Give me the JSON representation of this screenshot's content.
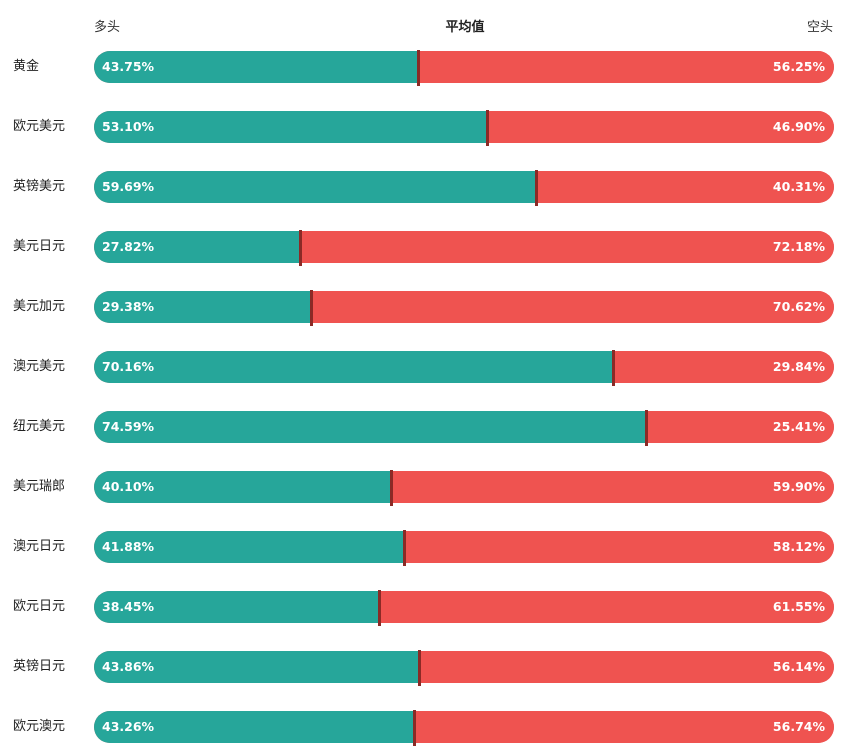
{
  "header": {
    "long_label": "多头",
    "average_label": "平均值",
    "short_label": "空头"
  },
  "colors": {
    "long": "#26a69a",
    "short": "#ef5350",
    "marker": "#8b2a26"
  },
  "chart_data": {
    "type": "bar",
    "orientation": "horizontal-stacked-100",
    "categories": [
      "黄金",
      "欧元美元",
      "英镑美元",
      "美元日元",
      "美元加元",
      "澳元美元",
      "纽元美元",
      "美元瑞郎",
      "澳元日元",
      "欧元日元",
      "英镑日元",
      "欧元澳元"
    ],
    "series": [
      {
        "name": "多头",
        "values": [
          43.75,
          53.1,
          59.69,
          27.82,
          29.38,
          70.16,
          74.59,
          40.1,
          41.88,
          38.45,
          43.86,
          43.26
        ],
        "labels": [
          "43.75%",
          "53.10%",
          "59.69%",
          "27.82%",
          "29.38%",
          "70.16%",
          "74.59%",
          "40.10%",
          "41.88%",
          "38.45%",
          "43.86%",
          "43.26%"
        ]
      },
      {
        "name": "空头",
        "values": [
          56.25,
          46.9,
          40.31,
          72.18,
          70.62,
          29.84,
          25.41,
          59.9,
          58.12,
          61.55,
          56.14,
          56.74
        ],
        "labels": [
          "56.25%",
          "46.90%",
          "40.31%",
          "72.18%",
          "70.62%",
          "29.84%",
          "25.41%",
          "59.90%",
          "58.12%",
          "61.55%",
          "56.14%",
          "56.74%"
        ]
      }
    ],
    "xlim": [
      0,
      100
    ]
  }
}
